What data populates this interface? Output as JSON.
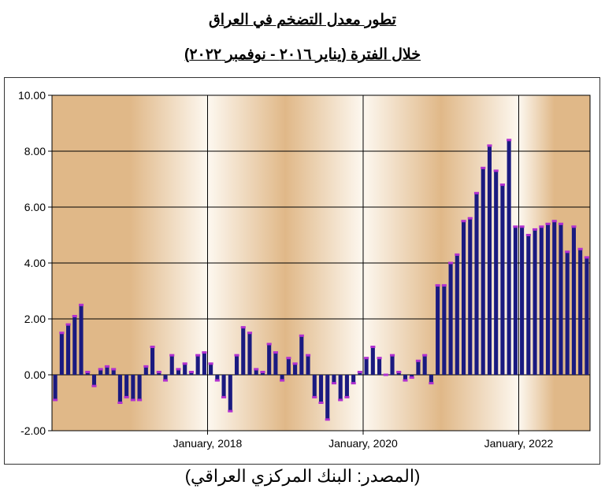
{
  "title_line1": "تطور معدل التضخم في العراق",
  "title_line2": "خلال الفترة (يناير ٢٠١٦ - نوفمبر ٢٠٢٢)",
  "source": "(المصدر: البنك المركزي العراقي)",
  "chart_data": {
    "type": "bar",
    "title": "تطور معدل التضخم في العراق",
    "subtitle": "خلال الفترة (يناير ٢٠١٦ - نوفمبر ٢٠٢٢)",
    "xlabel": "",
    "ylabel": "",
    "ylim": [
      -2,
      10
    ],
    "y_ticks": [
      "10.00",
      "8.00",
      "6.00",
      "4.00",
      "2.00",
      "0.00",
      "-2.00"
    ],
    "y_tick_values": [
      10,
      8,
      6,
      4,
      2,
      0,
      -2
    ],
    "x_tick_labels": [
      "January, 2018",
      "January, 2020",
      "January, 2022"
    ],
    "x_tick_months": [
      "2018-01",
      "2020-01",
      "2022-01"
    ],
    "grid": true,
    "legend": "none",
    "colors": {
      "bar": "#1a1a80",
      "bar_top": "#b030d0",
      "bg_dark": "#e0b888",
      "bg_light": "#fdf8f0",
      "grid": "#000000"
    },
    "months": [
      "2016-01",
      "2016-02",
      "2016-03",
      "2016-04",
      "2016-05",
      "2016-06",
      "2016-07",
      "2016-08",
      "2016-09",
      "2016-10",
      "2016-11",
      "2016-12",
      "2017-01",
      "2017-02",
      "2017-03",
      "2017-04",
      "2017-05",
      "2017-06",
      "2017-07",
      "2017-08",
      "2017-09",
      "2017-10",
      "2017-11",
      "2017-12",
      "2018-01",
      "2018-02",
      "2018-03",
      "2018-04",
      "2018-05",
      "2018-06",
      "2018-07",
      "2018-08",
      "2018-09",
      "2018-10",
      "2018-11",
      "2018-12",
      "2019-01",
      "2019-02",
      "2019-03",
      "2019-04",
      "2019-05",
      "2019-06",
      "2019-07",
      "2019-08",
      "2019-09",
      "2019-10",
      "2019-11",
      "2019-12",
      "2020-01",
      "2020-02",
      "2020-03",
      "2020-04",
      "2020-05",
      "2020-06",
      "2020-07",
      "2020-08",
      "2020-09",
      "2020-10",
      "2020-11",
      "2020-12",
      "2021-01",
      "2021-02",
      "2021-03",
      "2021-04",
      "2021-05",
      "2021-06",
      "2021-07",
      "2021-08",
      "2021-09",
      "2021-10",
      "2021-11",
      "2021-12",
      "2022-01",
      "2022-02",
      "2022-03",
      "2022-04",
      "2022-05",
      "2022-06",
      "2022-07",
      "2022-08",
      "2022-09",
      "2022-10",
      "2022-11"
    ],
    "values": [
      -0.9,
      1.5,
      1.8,
      2.1,
      2.5,
      0.1,
      -0.4,
      0.2,
      0.3,
      0.2,
      -1.0,
      -0.8,
      -0.9,
      -0.9,
      0.3,
      1.0,
      0.1,
      -0.2,
      0.7,
      0.2,
      0.4,
      0.1,
      0.7,
      0.8,
      0.4,
      -0.2,
      -0.8,
      -1.3,
      0.7,
      1.7,
      1.5,
      0.2,
      0.1,
      1.1,
      0.8,
      -0.2,
      0.6,
      0.4,
      1.4,
      0.7,
      -0.8,
      -1.0,
      -1.6,
      -0.3,
      -0.9,
      -0.8,
      -0.3,
      0.1,
      0.6,
      1.0,
      0.6,
      0.0,
      0.7,
      0.1,
      -0.2,
      -0.1,
      0.5,
      0.7,
      -0.3,
      3.2,
      3.2,
      4.0,
      4.3,
      5.5,
      5.6,
      6.5,
      7.4,
      8.2,
      7.3,
      6.8,
      8.4,
      5.3,
      5.3,
      5.0,
      5.2,
      5.3,
      5.4,
      5.5,
      5.4,
      4.4,
      5.3,
      4.5,
      4.2
    ]
  }
}
